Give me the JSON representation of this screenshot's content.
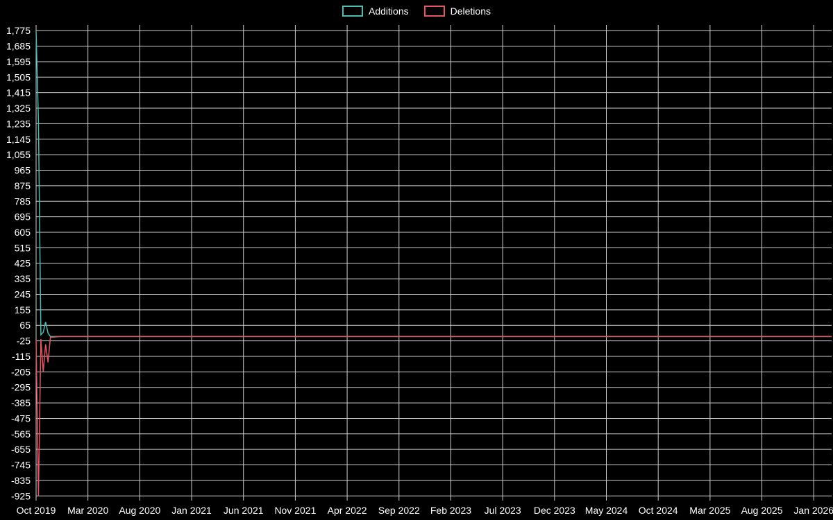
{
  "chart_data": {
    "type": "line",
    "title": "",
    "legend_position": "top-center",
    "colors": {
      "background": "#000000",
      "grid": "#cfcfcf",
      "text": "#ffffff",
      "additions": "#4fb8b2",
      "deletions": "#e25565"
    },
    "x_axis": {
      "tick_labels": [
        "Oct 2019",
        "Mar 2020",
        "Aug 2020",
        "Jan 2021",
        "Jun 2021",
        "Nov 2021",
        "Apr 2022",
        "Sep 2022",
        "Feb 2023",
        "Jul 2023",
        "Dec 2023",
        "May 2024",
        "Oct 2024",
        "Mar 2025",
        "Aug 2025",
        "Jan 2026"
      ]
    },
    "y_axis": {
      "tick_labels": [
        "1,775",
        "1,685",
        "1,595",
        "1,505",
        "1,415",
        "1,325",
        "1,235",
        "1,145",
        "1,055",
        "965",
        "875",
        "785",
        "695",
        "605",
        "515",
        "425",
        "335",
        "245",
        "155",
        "65",
        "-25",
        "-115",
        "-205",
        "-295",
        "-385",
        "-475",
        "-565",
        "-655",
        "-745",
        "-835",
        "-925"
      ],
      "tick_values": [
        1775,
        1685,
        1595,
        1505,
        1415,
        1325,
        1235,
        1145,
        1055,
        965,
        875,
        785,
        695,
        605,
        515,
        425,
        335,
        245,
        155,
        65,
        -25,
        -115,
        -205,
        -295,
        -385,
        -475,
        -565,
        -655,
        -745,
        -835,
        -925
      ],
      "range": [
        -952,
        1808
      ]
    },
    "x_domain_weeks": [
      0,
      333.6
    ],
    "x_tick_week_spacing": 21.74,
    "series": [
      {
        "name": "Additions",
        "color": "#4fb8b2",
        "points": [
          [
            0,
            1775
          ],
          [
            1,
            1245
          ],
          [
            2,
            10
          ],
          [
            3,
            25
          ],
          [
            4,
            85
          ],
          [
            5,
            20
          ],
          [
            6,
            0
          ],
          [
            10,
            0
          ],
          [
            333.6,
            0
          ]
        ]
      },
      {
        "name": "Deletions",
        "color": "#e25565",
        "points": [
          [
            0,
            -20
          ],
          [
            1,
            -925
          ],
          [
            2,
            -15
          ],
          [
            3,
            -205
          ],
          [
            4,
            -45
          ],
          [
            5,
            -150
          ],
          [
            6,
            -5
          ],
          [
            10,
            0
          ],
          [
            333.6,
            0
          ]
        ]
      }
    ]
  }
}
